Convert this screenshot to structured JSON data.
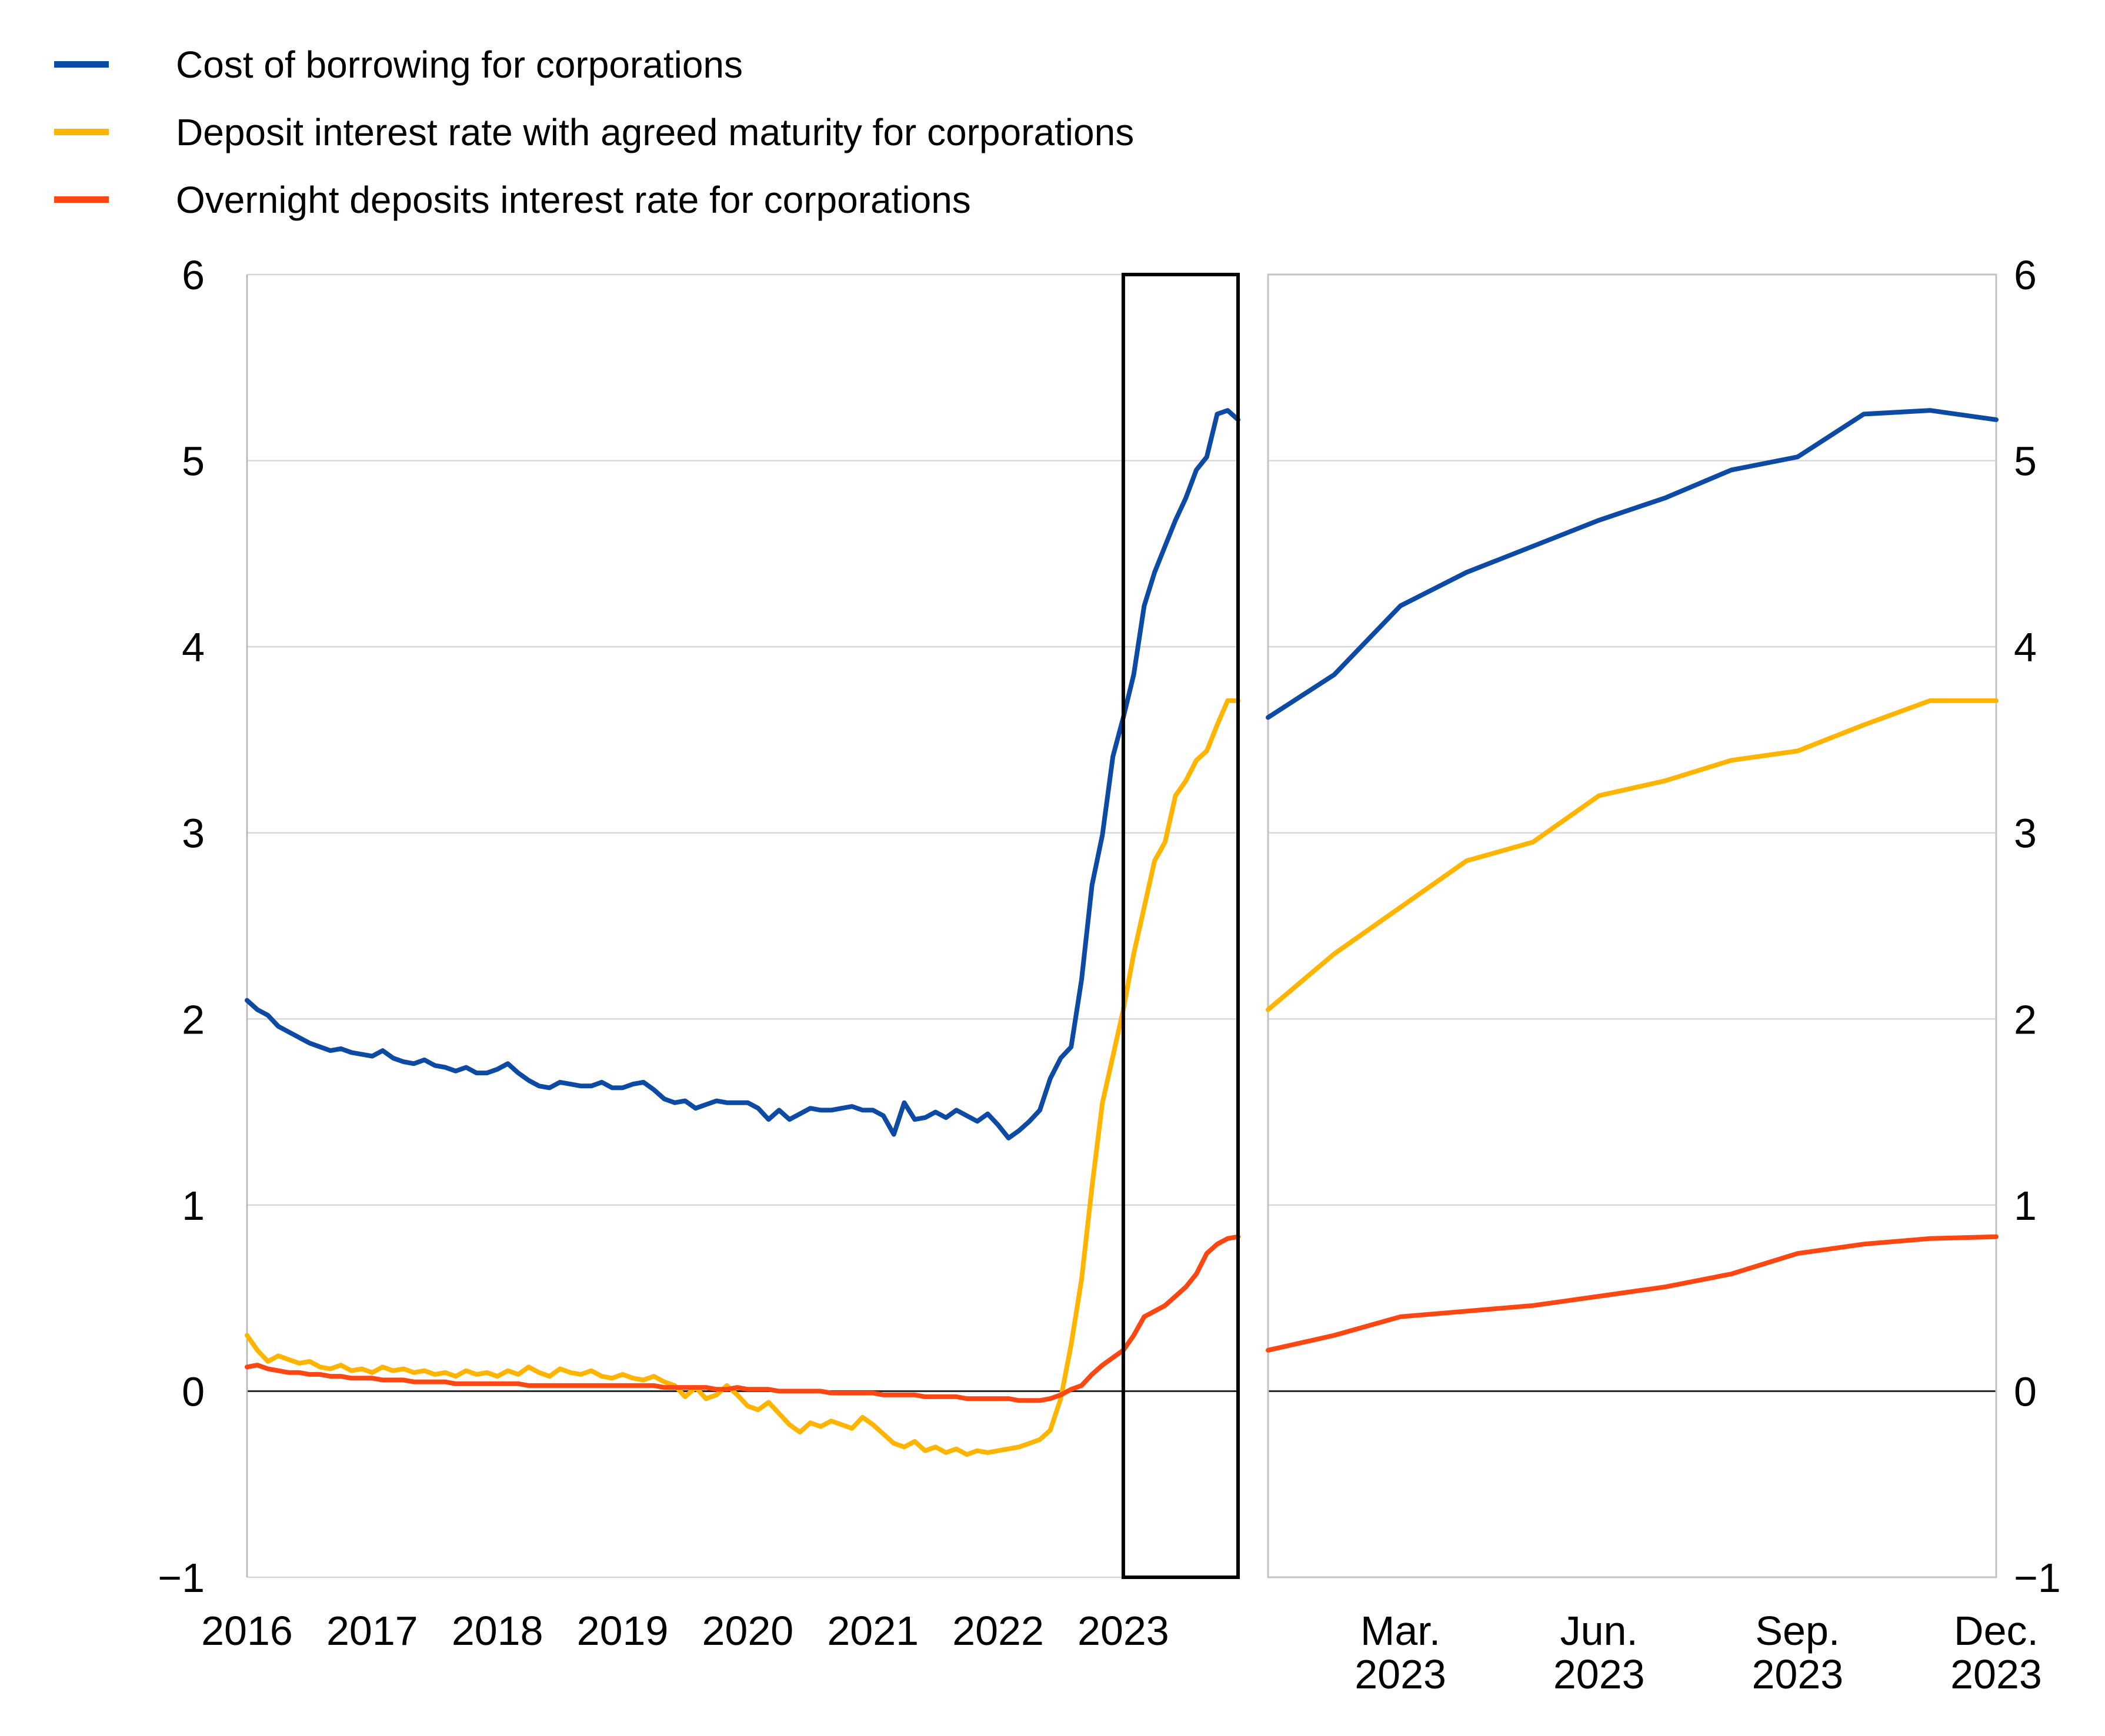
{
  "legend": {
    "items": [
      {
        "label": "Cost of borrowing for corporations",
        "color": "#0d4aa4"
      },
      {
        "label": "Deposit interest rate with agreed maturity for corporations",
        "color": "#ffb400"
      },
      {
        "label": "Overnight deposits interest rate for corporations",
        "color": "#fc4713"
      }
    ]
  },
  "axes": {
    "ylim": [
      -1,
      6
    ],
    "y_ticks": [
      {
        "value": 6,
        "label": "6"
      },
      {
        "value": 5,
        "label": "5"
      },
      {
        "value": 4,
        "label": "4"
      },
      {
        "value": 3,
        "label": "3"
      },
      {
        "value": 2,
        "label": "2"
      },
      {
        "value": 1,
        "label": "1"
      },
      {
        "value": 0,
        "label": "0"
      },
      {
        "value": -1,
        "label": "−1"
      }
    ],
    "grid_color": "#d7d7d7",
    "zero_line_color": "#2b2b2b",
    "axis_line_color": "#b5b5b5",
    "panel_border_color": "#c3c3c3",
    "highlight_box_color": "#000000"
  },
  "chart_data": [
    {
      "id": "left-panel",
      "type": "line",
      "title": "",
      "frequency": "monthly",
      "x_start": "2016-01",
      "x_end": "2023-12",
      "ylim": [
        -1,
        6
      ],
      "grid": true,
      "x_tick_labels": [
        "2016",
        "2017",
        "2018",
        "2019",
        "2020",
        "2021",
        "2022",
        "2023"
      ],
      "x_tick_month_index": [
        0,
        12,
        24,
        36,
        48,
        60,
        72,
        84
      ],
      "highlight_box": {
        "from_month_index": 84,
        "to_month_index": 95,
        "label": "2023"
      },
      "series": [
        {
          "name": "Cost of borrowing for corporations",
          "color": "#0d4aa4",
          "values": [
            2.1,
            2.05,
            2.02,
            1.96,
            1.93,
            1.9,
            1.87,
            1.85,
            1.83,
            1.84,
            1.82,
            1.81,
            1.8,
            1.83,
            1.79,
            1.77,
            1.76,
            1.78,
            1.75,
            1.74,
            1.72,
            1.74,
            1.71,
            1.71,
            1.73,
            1.76,
            1.71,
            1.67,
            1.64,
            1.63,
            1.66,
            1.65,
            1.64,
            1.64,
            1.66,
            1.63,
            1.63,
            1.65,
            1.66,
            1.62,
            1.57,
            1.55,
            1.56,
            1.52,
            1.54,
            1.56,
            1.55,
            1.55,
            1.55,
            1.52,
            1.46,
            1.51,
            1.46,
            1.49,
            1.52,
            1.51,
            1.51,
            1.52,
            1.53,
            1.51,
            1.51,
            1.48,
            1.38,
            1.55,
            1.46,
            1.47,
            1.5,
            1.47,
            1.51,
            1.48,
            1.45,
            1.49,
            1.43,
            1.36,
            1.4,
            1.45,
            1.51,
            1.68,
            1.79,
            1.85,
            2.21,
            2.72,
            2.99,
            3.41,
            3.62,
            3.85,
            4.22,
            4.4,
            4.54,
            4.68,
            4.8,
            4.95,
            5.02,
            5.25,
            5.27,
            5.22
          ]
        },
        {
          "name": "Deposit interest rate with agreed maturity for corporations",
          "color": "#ffb400",
          "values": [
            0.3,
            0.22,
            0.16,
            0.19,
            0.17,
            0.15,
            0.16,
            0.13,
            0.12,
            0.14,
            0.11,
            0.12,
            0.1,
            0.13,
            0.11,
            0.12,
            0.1,
            0.11,
            0.09,
            0.1,
            0.08,
            0.11,
            0.09,
            0.1,
            0.08,
            0.11,
            0.09,
            0.13,
            0.1,
            0.08,
            0.12,
            0.1,
            0.09,
            0.11,
            0.08,
            0.07,
            0.09,
            0.07,
            0.06,
            0.08,
            0.05,
            0.03,
            -0.03,
            0.02,
            -0.04,
            -0.02,
            0.03,
            -0.02,
            -0.08,
            -0.1,
            -0.06,
            -0.12,
            -0.18,
            -0.22,
            -0.17,
            -0.19,
            -0.16,
            -0.18,
            -0.2,
            -0.14,
            -0.18,
            -0.23,
            -0.28,
            -0.3,
            -0.27,
            -0.32,
            -0.3,
            -0.33,
            -0.31,
            -0.34,
            -0.32,
            -0.33,
            -0.32,
            -0.31,
            -0.3,
            -0.28,
            -0.26,
            -0.21,
            -0.04,
            0.25,
            0.6,
            1.1,
            1.55,
            1.8,
            2.05,
            2.35,
            2.6,
            2.85,
            2.95,
            3.2,
            3.28,
            3.39,
            3.44,
            3.58,
            3.71,
            3.71
          ]
        },
        {
          "name": "Overnight deposits interest rate for corporations",
          "color": "#fc4713",
          "values": [
            0.13,
            0.14,
            0.12,
            0.11,
            0.1,
            0.1,
            0.09,
            0.09,
            0.08,
            0.08,
            0.07,
            0.07,
            0.07,
            0.06,
            0.06,
            0.06,
            0.05,
            0.05,
            0.05,
            0.05,
            0.04,
            0.04,
            0.04,
            0.04,
            0.04,
            0.04,
            0.04,
            0.03,
            0.03,
            0.03,
            0.03,
            0.03,
            0.03,
            0.03,
            0.03,
            0.03,
            0.03,
            0.03,
            0.03,
            0.03,
            0.02,
            0.02,
            0.02,
            0.02,
            0.02,
            0.01,
            0.01,
            0.02,
            0.01,
            0.01,
            0.01,
            0.0,
            0.0,
            0.0,
            0.0,
            0.0,
            -0.01,
            -0.01,
            -0.01,
            -0.01,
            -0.01,
            -0.02,
            -0.02,
            -0.02,
            -0.02,
            -0.03,
            -0.03,
            -0.03,
            -0.03,
            -0.04,
            -0.04,
            -0.04,
            -0.04,
            -0.04,
            -0.05,
            -0.05,
            -0.05,
            -0.04,
            -0.02,
            0.01,
            0.03,
            0.09,
            0.14,
            0.18,
            0.22,
            0.3,
            0.4,
            0.43,
            0.46,
            0.51,
            0.56,
            0.63,
            0.74,
            0.79,
            0.82,
            0.83
          ]
        }
      ]
    },
    {
      "id": "right-panel",
      "type": "line",
      "title": "",
      "frequency": "monthly",
      "x_start": "2023-01",
      "x_end": "2023-12",
      "ylim": [
        -1,
        6
      ],
      "grid": true,
      "x_tick_labels": [
        {
          "line1": "Mar.",
          "line2": "2023"
        },
        {
          "line1": "Jun.",
          "line2": "2023"
        },
        {
          "line1": "Sep.",
          "line2": "2023"
        },
        {
          "line1": "Dec.",
          "line2": "2023"
        }
      ],
      "x_tick_month_index": [
        2,
        5,
        8,
        11
      ],
      "series": [
        {
          "name": "Cost of borrowing for corporations",
          "color": "#0d4aa4",
          "values": [
            3.62,
            3.85,
            4.22,
            4.4,
            4.54,
            4.68,
            4.8,
            4.95,
            5.02,
            5.25,
            5.27,
            5.22
          ]
        },
        {
          "name": "Deposit interest rate with agreed maturity for corporations",
          "color": "#ffb400",
          "values": [
            2.05,
            2.35,
            2.6,
            2.85,
            2.95,
            3.2,
            3.28,
            3.39,
            3.44,
            3.58,
            3.71,
            3.71
          ]
        },
        {
          "name": "Overnight deposits interest rate for corporations",
          "color": "#fc4713",
          "values": [
            0.22,
            0.3,
            0.4,
            0.43,
            0.46,
            0.51,
            0.56,
            0.63,
            0.74,
            0.79,
            0.82,
            0.83
          ]
        }
      ]
    }
  ]
}
